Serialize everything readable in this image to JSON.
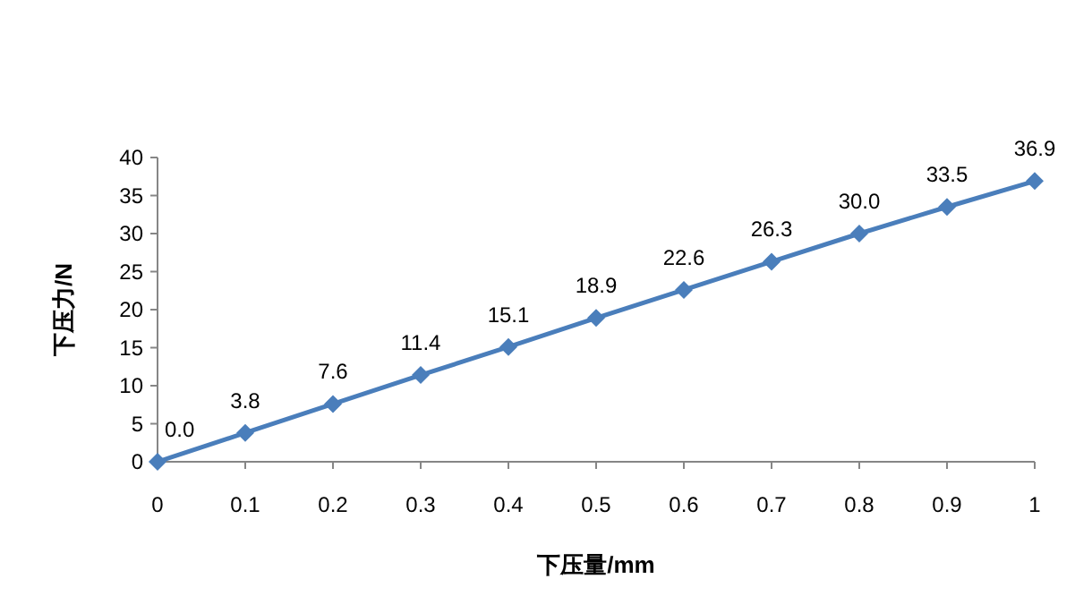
{
  "chart_data": {
    "type": "line",
    "xlabel": "下压量/mm",
    "ylabel": "下压力/N",
    "x": [
      0,
      0.1,
      0.2,
      0.3,
      0.4,
      0.5,
      0.6,
      0.7,
      0.8,
      0.9,
      1
    ],
    "series": [
      {
        "color": "#4a7ebb",
        "values": [
          0,
          3.8,
          7.6,
          11.4,
          15.1,
          18.9,
          22.6,
          26.3,
          30,
          33.5,
          36.9
        ],
        "value_labels": [
          "0.0",
          "3.8",
          "7.6",
          "11.4",
          "15.1",
          "18.9",
          "22.6",
          "26.3",
          "30.0",
          "33.5",
          "36.9"
        ]
      }
    ],
    "xlim": [
      0,
      1
    ],
    "xticks": [
      0,
      0.1,
      0.2,
      0.3,
      0.4,
      0.5,
      0.6,
      0.7,
      0.8,
      0.9,
      1
    ],
    "ylim": [
      0,
      40
    ],
    "yticks": [
      0,
      5,
      10,
      15,
      20,
      25,
      30,
      35,
      40
    ],
    "marker": "diamond",
    "line_style": "solid",
    "grid": false
  }
}
